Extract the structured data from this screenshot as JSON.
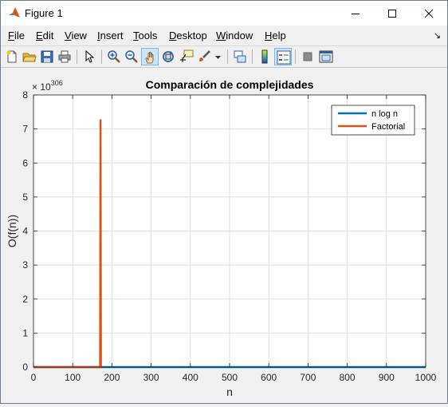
{
  "window": {
    "title": "Figure 1"
  },
  "menu": {
    "items": [
      {
        "label": "File",
        "u": "F",
        "rest": "ile"
      },
      {
        "label": "Edit",
        "u": "E",
        "rest": "dit"
      },
      {
        "label": "View",
        "u": "V",
        "rest": "iew"
      },
      {
        "label": "Insert",
        "u": "I",
        "rest": "nsert"
      },
      {
        "label": "Tools",
        "u": "T",
        "rest": "ools"
      },
      {
        "label": "Desktop",
        "u": "D",
        "rest": "esktop"
      },
      {
        "label": "Window",
        "u": "W",
        "rest": "indow"
      },
      {
        "label": "Help",
        "u": "H",
        "rest": "elp"
      }
    ]
  },
  "toolbar": {
    "icons": [
      "new-figure-icon",
      "open-file-icon",
      "save-icon",
      "print-icon",
      "edit-plot-icon",
      "zoom-in-icon",
      "zoom-out-icon",
      "pan-icon",
      "rotate-3d-icon",
      "data-cursor-icon",
      "brush-icon",
      "link-plot-icon",
      "colorbar-icon",
      "legend-icon",
      "hide-plot-tools-icon",
      "show-plot-tools-icon"
    ]
  },
  "chart_data": {
    "type": "line",
    "title": "Comparación de complejidades",
    "xlabel": "n",
    "ylabel": "O(f(n))",
    "exponent_label": "× 10",
    "exponent_power": "306",
    "xlim": [
      0,
      1000
    ],
    "ylim": [
      0,
      8
    ],
    "x_ticks": [
      "0",
      "100",
      "200",
      "300",
      "400",
      "500",
      "600",
      "700",
      "800",
      "900",
      "1000"
    ],
    "y_ticks": [
      "0",
      "1",
      "2",
      "3",
      "4",
      "5",
      "6",
      "7",
      "8"
    ],
    "grid": true,
    "legend_position": "top-right",
    "series": [
      {
        "name": "n log n",
        "color": "#0072bd",
        "x": [
          0,
          1000
        ],
        "y": [
          0,
          0
        ]
      },
      {
        "name": "Factorial",
        "color": "#d95319",
        "x": [
          0,
          168,
          169,
          170,
          171,
          172
        ],
        "y": [
          0,
          0,
          0,
          0,
          7.26,
          0
        ]
      }
    ]
  }
}
